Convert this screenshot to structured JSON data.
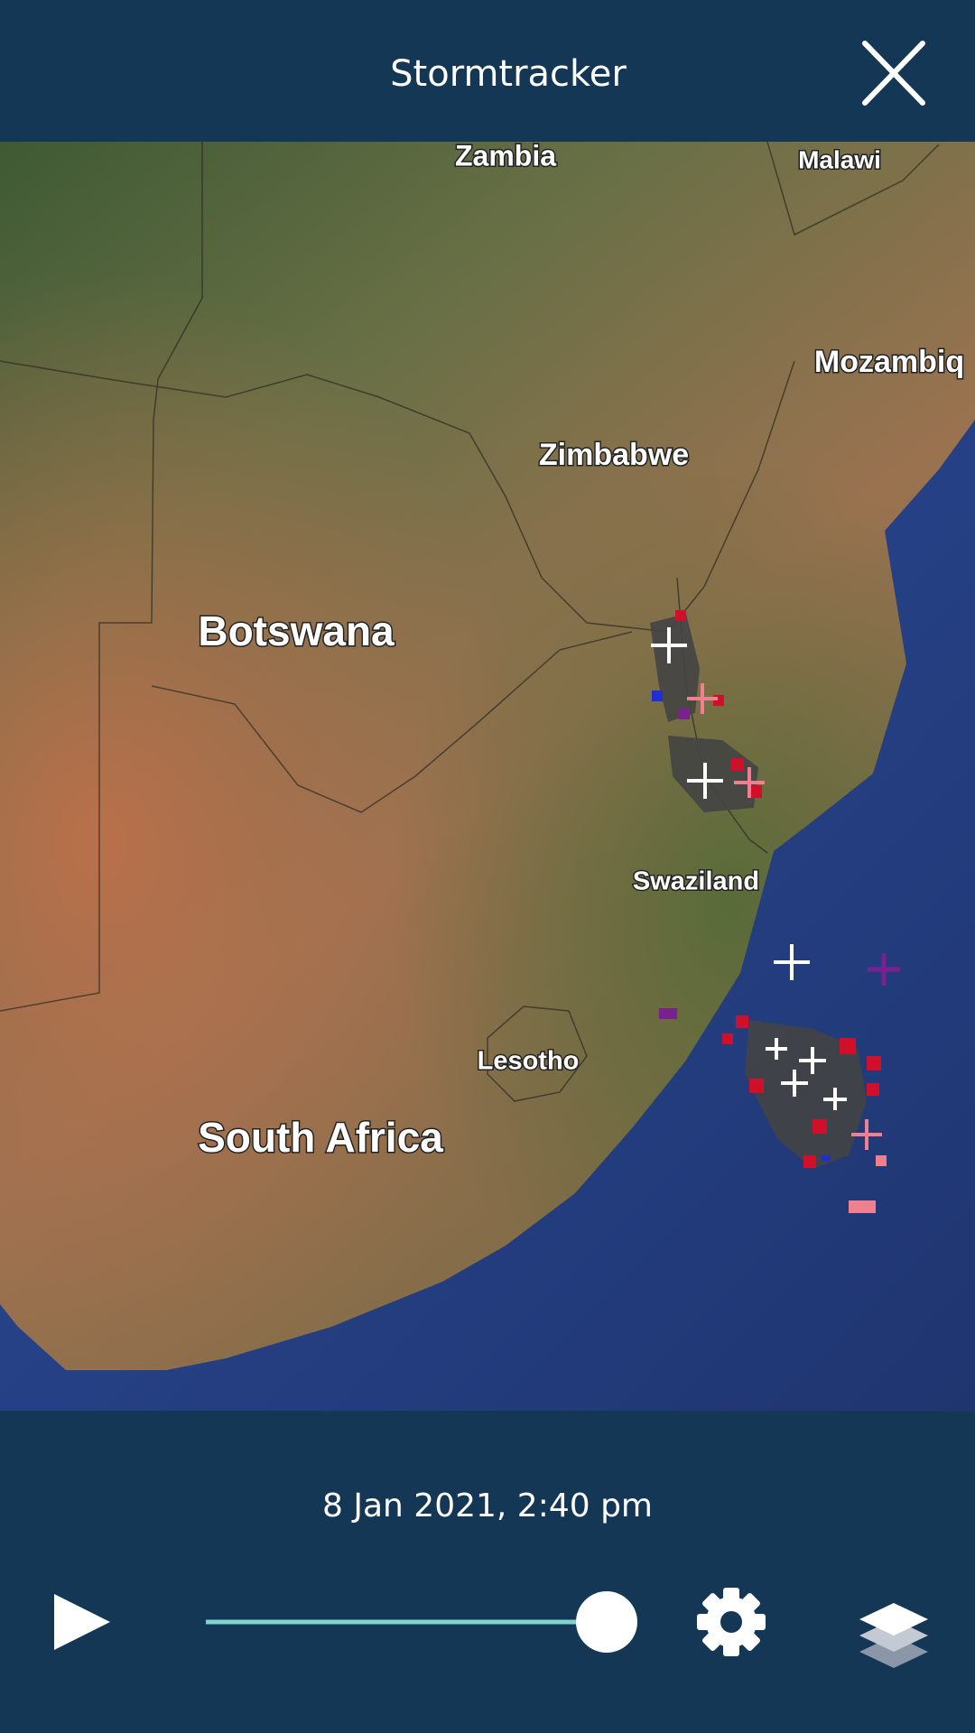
{
  "header": {
    "title": "Stormtracker"
  },
  "map": {
    "labels": [
      "Zambia",
      "Malawi",
      "Mozambiq",
      "Zimbabwe",
      "Botswana",
      "Swaziland",
      "Lesotho",
      "South Africa"
    ]
  },
  "footer": {
    "timestamp": "8 Jan 2021, 2:40 pm"
  }
}
